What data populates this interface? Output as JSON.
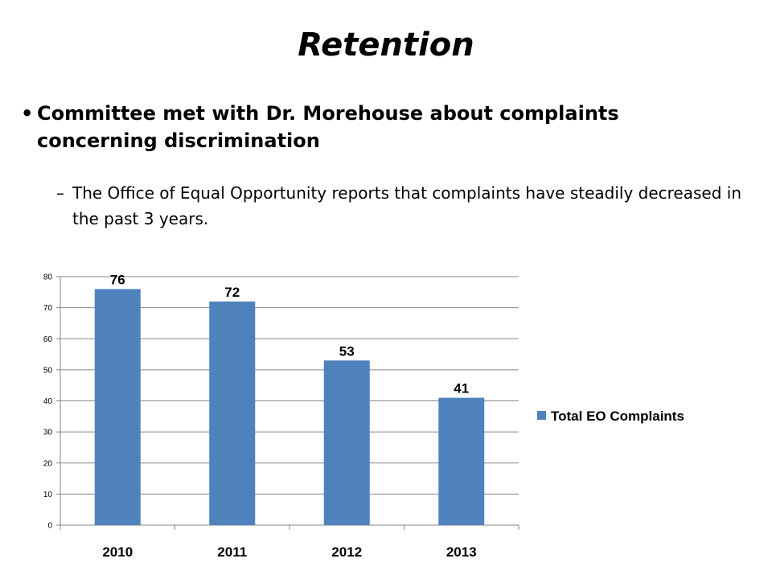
{
  "slide": {
    "title": "Retention",
    "bullet": "Committee met with Dr. Morehouse about complaints concerning discrimination",
    "sub_bullet": "The Office of Equal Opportunity reports that complaints have steadily decreased in the past 3 years."
  },
  "chart_data": {
    "type": "bar",
    "categories": [
      "2010",
      "2011",
      "2012",
      "2013"
    ],
    "series": [
      {
        "name": "Total EO Complaints",
        "values": [
          76,
          72,
          53,
          41
        ],
        "color": "#4f81bd"
      }
    ],
    "title": "",
    "xlabel": "",
    "ylabel": "",
    "ylim": [
      0,
      80
    ],
    "yticks": [
      0,
      10,
      20,
      30,
      40,
      50,
      60,
      70,
      80
    ],
    "grid": true,
    "legend": "right",
    "data_labels": true
  }
}
